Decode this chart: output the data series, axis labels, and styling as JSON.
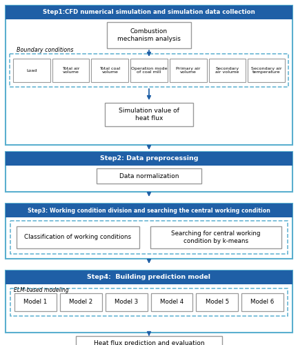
{
  "bg_color": "#ffffff",
  "step_header_color": "#1f5fa6",
  "step_text_color": "#ffffff",
  "outer_edge_color": "#5aa0d0",
  "inner_edge_color": "#888888",
  "dashed_edge_color": "#5aaaaа",
  "arrow_color": "#1f5fa6",
  "text_color": "#000000",
  "step1_header": "Step1:CFD numerical simulation and simulation data collection",
  "step2_header": "Step2: Data preprocessing",
  "step3_header": "Step3: Working condition division and searching the central working condition",
  "step4_header": "Step4:  Building prediction model",
  "combustion_box": "Combustion\nmechanism analysis",
  "boundary_label": "Boundary conditions",
  "boundary_items": [
    "Load",
    "Total air\nvolume",
    "Total coal\nvolume",
    "Operation mode\nof coal mill",
    "Primary air\nvolume",
    "Secondary\nair volume",
    "Secondary air\ntemperature"
  ],
  "sim_box": "Simulation value of\nheat flux",
  "data_norm_box": "Data normalization",
  "classif_box": "Classification of working conditions",
  "search_box": "Searching for central working\ncondition by k-means",
  "elm_label": "ELM-based modeling",
  "models": [
    "Model 1",
    "Model 2",
    "Model 3",
    "Model 4",
    "Model 5",
    "Model 6"
  ],
  "final_box": "Heat flux prediction and evaluation"
}
